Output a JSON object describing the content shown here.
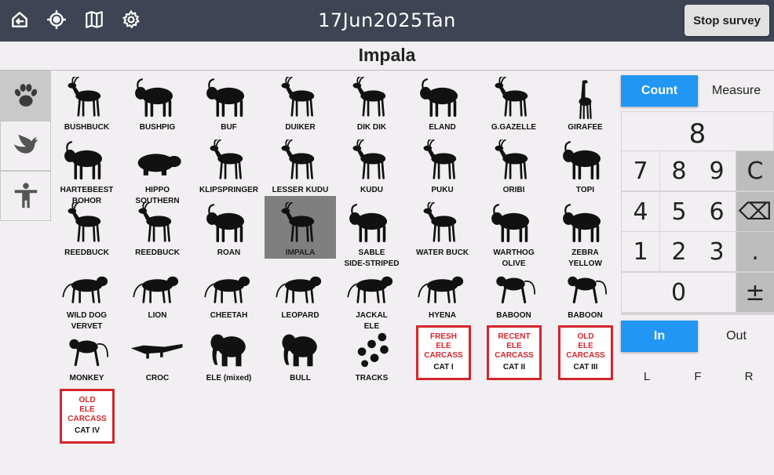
{
  "header": {
    "survey_name": "17Jun2025Tan",
    "stop_button": "Stop survey",
    "icons": [
      "exit-icon",
      "gps-target-icon",
      "map-icon",
      "settings-icon"
    ]
  },
  "selected_species": "Impala",
  "category_tabs": [
    {
      "name": "mammals",
      "icon": "paw-icon",
      "active": true
    },
    {
      "name": "birds",
      "icon": "bird-icon",
      "active": false
    },
    {
      "name": "human-activity",
      "icon": "person-icon",
      "active": false
    }
  ],
  "species": [
    {
      "name": "BUSHBUCK",
      "top": ""
    },
    {
      "name": "BUSHPIG",
      "top": ""
    },
    {
      "name": "BUF",
      "top": ""
    },
    {
      "name": "DUIKER",
      "top": ""
    },
    {
      "name": "DIK DIK",
      "top": ""
    },
    {
      "name": "ELAND",
      "top": ""
    },
    {
      "name": "G.GAZELLE",
      "top": ""
    },
    {
      "name": "GIRAFEE",
      "top": ""
    },
    {
      "name": "HARTEBEEST",
      "top": ""
    },
    {
      "name": "HIPPO",
      "top": ""
    },
    {
      "name": "KLIPSPRINGER",
      "top": ""
    },
    {
      "name": "LESSER KUDU",
      "top": ""
    },
    {
      "name": "KUDU",
      "top": ""
    },
    {
      "name": "PUKU",
      "top": ""
    },
    {
      "name": "ORIBI",
      "top": ""
    },
    {
      "name": "TOPI",
      "top": ""
    },
    {
      "name": "REEDBUCK",
      "top": "BOHOR"
    },
    {
      "name": "REEDBUCK",
      "top": "SOUTHERN"
    },
    {
      "name": "ROAN",
      "top": ""
    },
    {
      "name": "IMPALA",
      "top": "",
      "selected": true
    },
    {
      "name": "SABLE",
      "top": ""
    },
    {
      "name": "WATER BUCK",
      "top": ""
    },
    {
      "name": "WARTHOG",
      "top": ""
    },
    {
      "name": "ZEBRA",
      "top": ""
    },
    {
      "name": "WILD DOG",
      "top": ""
    },
    {
      "name": "LION",
      "top": ""
    },
    {
      "name": "CHEETAH",
      "top": ""
    },
    {
      "name": "LEOPARD",
      "top": ""
    },
    {
      "name": "JACKAL",
      "top": "SIDE-STRIPED"
    },
    {
      "name": "HYENA",
      "top": ""
    },
    {
      "name": "BABOON",
      "top": "OLIVE"
    },
    {
      "name": "BABOON",
      "top": "YELLOW"
    },
    {
      "name": "MONKEY",
      "top": "VERVET"
    },
    {
      "name": "CROC",
      "top": ""
    },
    {
      "name": "ELE (mixed)",
      "top": ""
    },
    {
      "name": "BULL",
      "top": ""
    },
    {
      "name": "TRACKS",
      "top": "ELE"
    }
  ],
  "carcass_buttons": [
    {
      "lines": [
        "FRESH",
        "ELE",
        "CARCASS"
      ],
      "cat": "CAT I"
    },
    {
      "lines": [
        "RECENT",
        "ELE",
        "CARCASS"
      ],
      "cat": "CAT II"
    },
    {
      "lines": [
        "OLD",
        "ELE",
        "CARCASS"
      ],
      "cat": "CAT III"
    },
    {
      "lines": [
        "OLD",
        "ELE",
        "CARCASS"
      ],
      "cat": "CAT IV"
    }
  ],
  "mode": {
    "count_label": "Count",
    "measure_label": "Measure",
    "active": "count"
  },
  "keypad": {
    "display_value": "8",
    "keys": [
      "7",
      "8",
      "9",
      "C",
      "4",
      "5",
      "6",
      "⌫",
      "1",
      "2",
      "3",
      ".",
      "0",
      "±"
    ]
  },
  "direction": {
    "in_label": "In",
    "out_label": "Out",
    "active": "in"
  },
  "sides": [
    "L",
    "F",
    "R"
  ],
  "colors": {
    "topbar": "#3e4453",
    "accent": "#2196f3",
    "carcass_red": "#d3262b",
    "selected_tile": "#7f7f7f"
  }
}
